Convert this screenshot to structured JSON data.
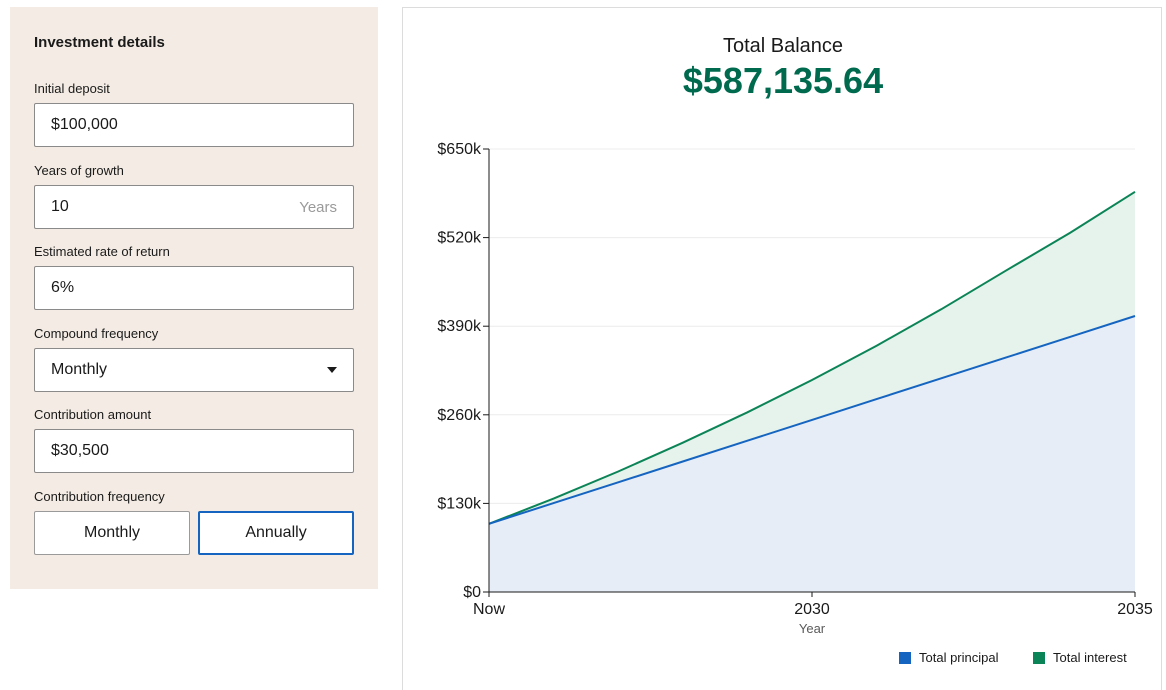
{
  "form": {
    "title": "Investment details",
    "initial_deposit": {
      "label": "Initial deposit",
      "value": "$100,000"
    },
    "years": {
      "label": "Years of growth",
      "value": "10",
      "suffix": "Years"
    },
    "rate": {
      "label": "Estimated rate of return",
      "value": "6%"
    },
    "compound": {
      "label": "Compound frequency",
      "value": "Monthly"
    },
    "contribution": {
      "label": "Contribution amount",
      "value": "$30,500"
    },
    "contribution_frequency": {
      "label": "Contribution frequency",
      "options": [
        "Monthly",
        "Annually"
      ],
      "selected": "Annually"
    }
  },
  "summary": {
    "label": "Total Balance",
    "value": "$587,135.64"
  },
  "colors": {
    "principal": "#1565c0",
    "interest": "#0b8457",
    "principal_fill": "#e6edf7",
    "interest_fill": "#e6f2ec",
    "total_value": "#006a4e",
    "panel_bg": "#f4ece4",
    "active_border": "#1565c0"
  },
  "chart_data": {
    "type": "area",
    "xlabel": "Year",
    "x": [
      0,
      1,
      2,
      3,
      4,
      5,
      6,
      7,
      8,
      9,
      10
    ],
    "x_tick_labels": [
      {
        "x": 0,
        "label": "Now"
      },
      {
        "x": 5,
        "label": "2030"
      },
      {
        "x": 10,
        "label": "2035"
      }
    ],
    "ylim": [
      0,
      650000
    ],
    "y_ticks": [
      0,
      130000,
      260000,
      390000,
      520000,
      650000
    ],
    "y_tick_labels": [
      "$0",
      "$130k",
      "$260k",
      "$390k",
      "$520k",
      "$650k"
    ],
    "grid": true,
    "legend_position": "bottom-right",
    "series": [
      {
        "name": "Total principal",
        "values": [
          100000,
          130500,
          161000,
          191500,
          222000,
          252500,
          283000,
          313500,
          344000,
          374500,
          405000
        ]
      },
      {
        "name": "Total interest",
        "values": [
          100000,
          137000,
          176800,
          219000,
          263700,
          311100,
          361400,
          414800,
          471400,
          527400,
          587136
        ]
      }
    ]
  }
}
